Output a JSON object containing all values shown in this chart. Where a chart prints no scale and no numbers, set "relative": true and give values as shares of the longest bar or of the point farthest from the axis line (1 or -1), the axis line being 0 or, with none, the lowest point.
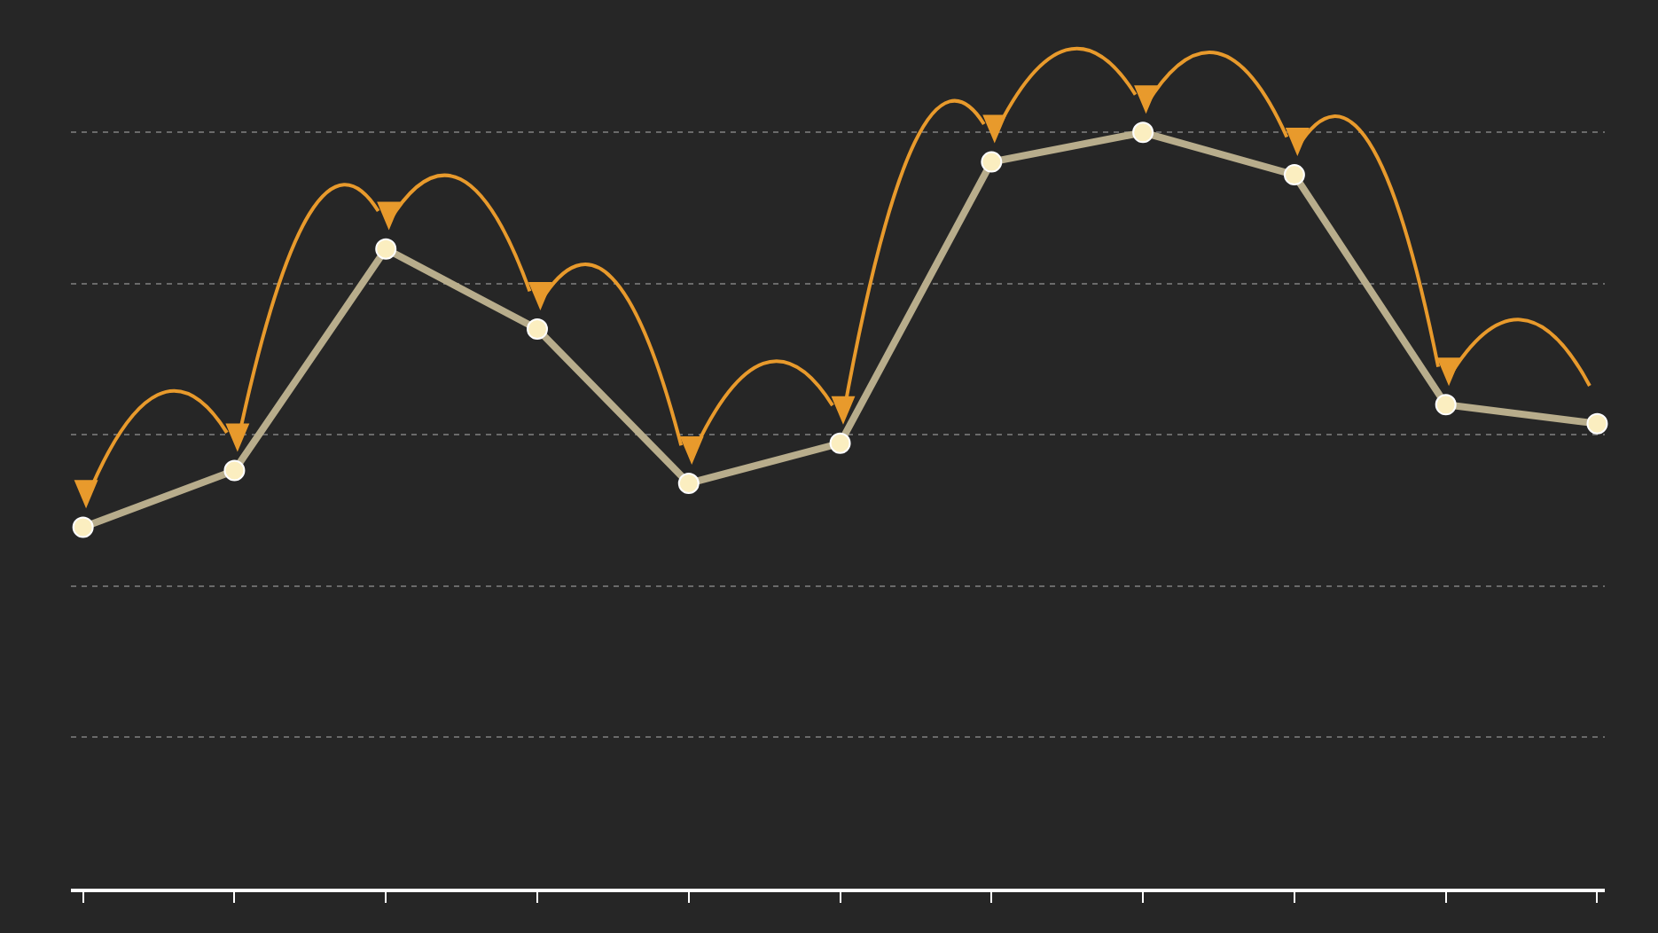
{
  "chart_data": {
    "type": "line",
    "categories": [
      null,
      null,
      null,
      null,
      null,
      null,
      null,
      null,
      null,
      null,
      null
    ],
    "series": [
      {
        "color": "#b8ad8c",
        "values": [
          0.478,
          0.553,
          0.846,
          0.74,
          0.536,
          0.589,
          0.961,
          1,
          0.944,
          0.64,
          0.615
        ]
      }
    ],
    "relative": true,
    "grid": "y",
    "marker": "circle",
    "line_style": "solid"
  }
}
